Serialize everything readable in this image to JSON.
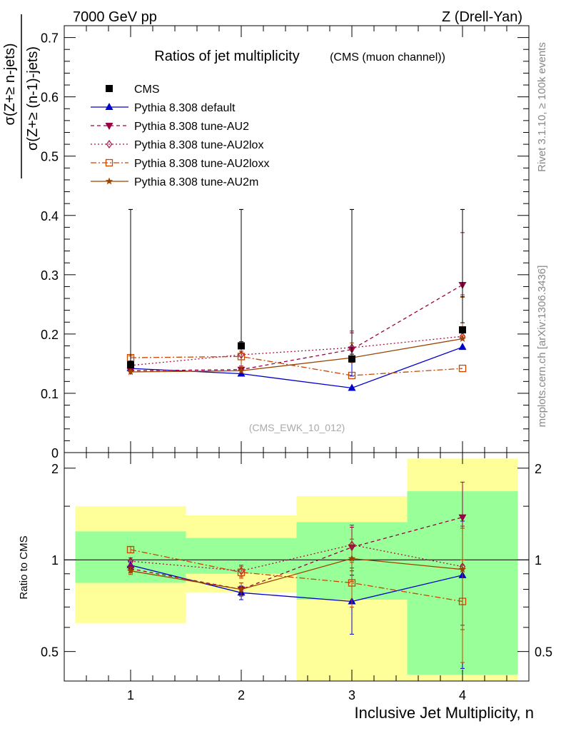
{
  "header": {
    "left": "7000 GeV pp",
    "right": "Z (Drell-Yan)"
  },
  "side_labels": {
    "rivet": "Rivet 3.1.10, ≥ 100k events",
    "mcplots": "mcplots.cern.ch [arXiv:1306.3436]"
  },
  "colors": {
    "CMS": "#000000",
    "default": "#0000cc",
    "AU2": "#990044",
    "AU2lox": "#aa1144",
    "AU2loxx": "#cc4400",
    "AU2m": "#994400",
    "band_inner": "#99ff99",
    "band_outer": "#ffff99"
  },
  "chart_data": [
    {
      "type": "line",
      "title": "Ratios of jet multiplicity",
      "subtitle": "(CMS (muon channel))",
      "watermark": "(CMS_EWK_10_012)",
      "ylabel_num": "σ(Z+≥ n-jets)",
      "ylabel_den": "σ(Z+≥ (n-1)-jets)",
      "x": [
        1,
        2,
        3,
        4
      ],
      "xlim": [
        0.4,
        4.6
      ],
      "ylim": [
        0,
        0.72
      ],
      "yticks": [
        "0",
        "0.1",
        "0.2",
        "0.3",
        "0.4",
        "0.5",
        "0.6",
        "0.7"
      ],
      "legend_position": "top-left",
      "series": [
        {
          "name": "CMS",
          "key": "CMS",
          "style": "data",
          "marker": "square-filled",
          "values": [
            0.148,
            0.18,
            0.158,
            0.207
          ],
          "err": [
            0.006,
            0.007,
            0.008,
            0.012
          ]
        },
        {
          "name": "Pythia 8.308 default",
          "key": "default",
          "style": "solid",
          "marker": "triangle-up-filled",
          "values": [
            0.142,
            0.133,
            0.109,
            0.178
          ],
          "err": [
            0.004,
            0.006,
            0.02,
            0.085
          ]
        },
        {
          "name": "Pythia 8.308 tune-AU2",
          "key": "AU2",
          "style": "dash",
          "marker": "triangle-down-filled",
          "values": [
            0.138,
            0.14,
            0.174,
            0.283
          ],
          "err": [
            0.003,
            0.006,
            0.028,
            0.088
          ]
        },
        {
          "name": "Pythia 8.308 tune-AU2lox",
          "key": "AU2lox",
          "style": "dot",
          "marker": "diamond-open",
          "values": [
            0.147,
            0.165,
            0.177,
            0.196
          ],
          "err": [
            0.003,
            0.006,
            0.028,
            0.07
          ]
        },
        {
          "name": "Pythia 8.308 tune-AU2loxx",
          "key": "AU2loxx",
          "style": "dashdot",
          "marker": "square-open",
          "values": [
            0.16,
            0.162,
            0.13,
            0.142
          ],
          "err": [
            0.003,
            0.006,
            0.022,
            0.055
          ]
        },
        {
          "name": "Pythia 8.308 tune-AU2m",
          "key": "AU2m",
          "style": "solid",
          "marker": "star",
          "values": [
            0.136,
            0.138,
            0.16,
            0.192
          ],
          "err": [
            0.003,
            0.006,
            0.025,
            0.07
          ]
        }
      ]
    },
    {
      "type": "line",
      "ylabel": "Ratio to CMS",
      "xlabel": "Inclusive Jet Multiplicity, n",
      "x": [
        1,
        2,
        3,
        4
      ],
      "xticks": [
        "1",
        "2",
        "3",
        "4"
      ],
      "xlim": [
        0.4,
        4.6
      ],
      "ylim": [
        0.4,
        2.25
      ],
      "yscale": "log",
      "yticks": [
        "0.5",
        "1",
        "2"
      ],
      "bands": [
        {
          "x0": 0.5,
          "x1": 1.5,
          "outer": [
            0.62,
            1.5
          ],
          "inner": [
            0.84,
            1.24
          ]
        },
        {
          "x0": 1.5,
          "x1": 2.5,
          "outer": [
            0.78,
            1.4
          ],
          "inner": [
            0.9,
            1.18
          ]
        },
        {
          "x0": 2.5,
          "x1": 3.5,
          "outer": [
            0.4,
            1.62
          ],
          "inner": [
            0.74,
            1.33
          ]
        },
        {
          "x0": 3.5,
          "x1": 4.5,
          "outer": [
            0.4,
            2.15
          ],
          "inner": [
            0.42,
            1.68
          ]
        }
      ],
      "series": [
        {
          "name": "Pythia 8.308 default",
          "key": "default",
          "style": "solid",
          "marker": "triangle-up-filled",
          "values": [
            0.96,
            0.78,
            0.73,
            0.89
          ],
          "err": [
            0.03,
            0.04,
            0.16,
            0.45
          ]
        },
        {
          "name": "Pythia 8.308 tune-AU2",
          "key": "AU2",
          "style": "dash",
          "marker": "triangle-down-filled",
          "values": [
            0.935,
            0.8,
            1.1,
            1.38
          ],
          "err": [
            0.025,
            0.04,
            0.18,
            0.42
          ]
        },
        {
          "name": "Pythia 8.308 tune-AU2lox",
          "key": "AU2lox",
          "style": "dot",
          "marker": "diamond-open",
          "values": [
            0.99,
            0.92,
            1.12,
            0.95
          ],
          "err": [
            0.025,
            0.04,
            0.18,
            0.34
          ]
        },
        {
          "name": "Pythia 8.308 tune-AU2loxx",
          "key": "AU2loxx",
          "style": "dashdot",
          "marker": "square-open",
          "values": [
            1.08,
            0.91,
            0.84,
            0.73
          ],
          "err": [
            0.025,
            0.04,
            0.14,
            0.27
          ]
        },
        {
          "name": "Pythia 8.308 tune-AU2m",
          "key": "AU2m",
          "style": "solid",
          "marker": "star",
          "values": [
            0.92,
            0.8,
            1.01,
            0.93
          ],
          "err": [
            0.025,
            0.04,
            0.16,
            0.34
          ]
        }
      ]
    }
  ]
}
